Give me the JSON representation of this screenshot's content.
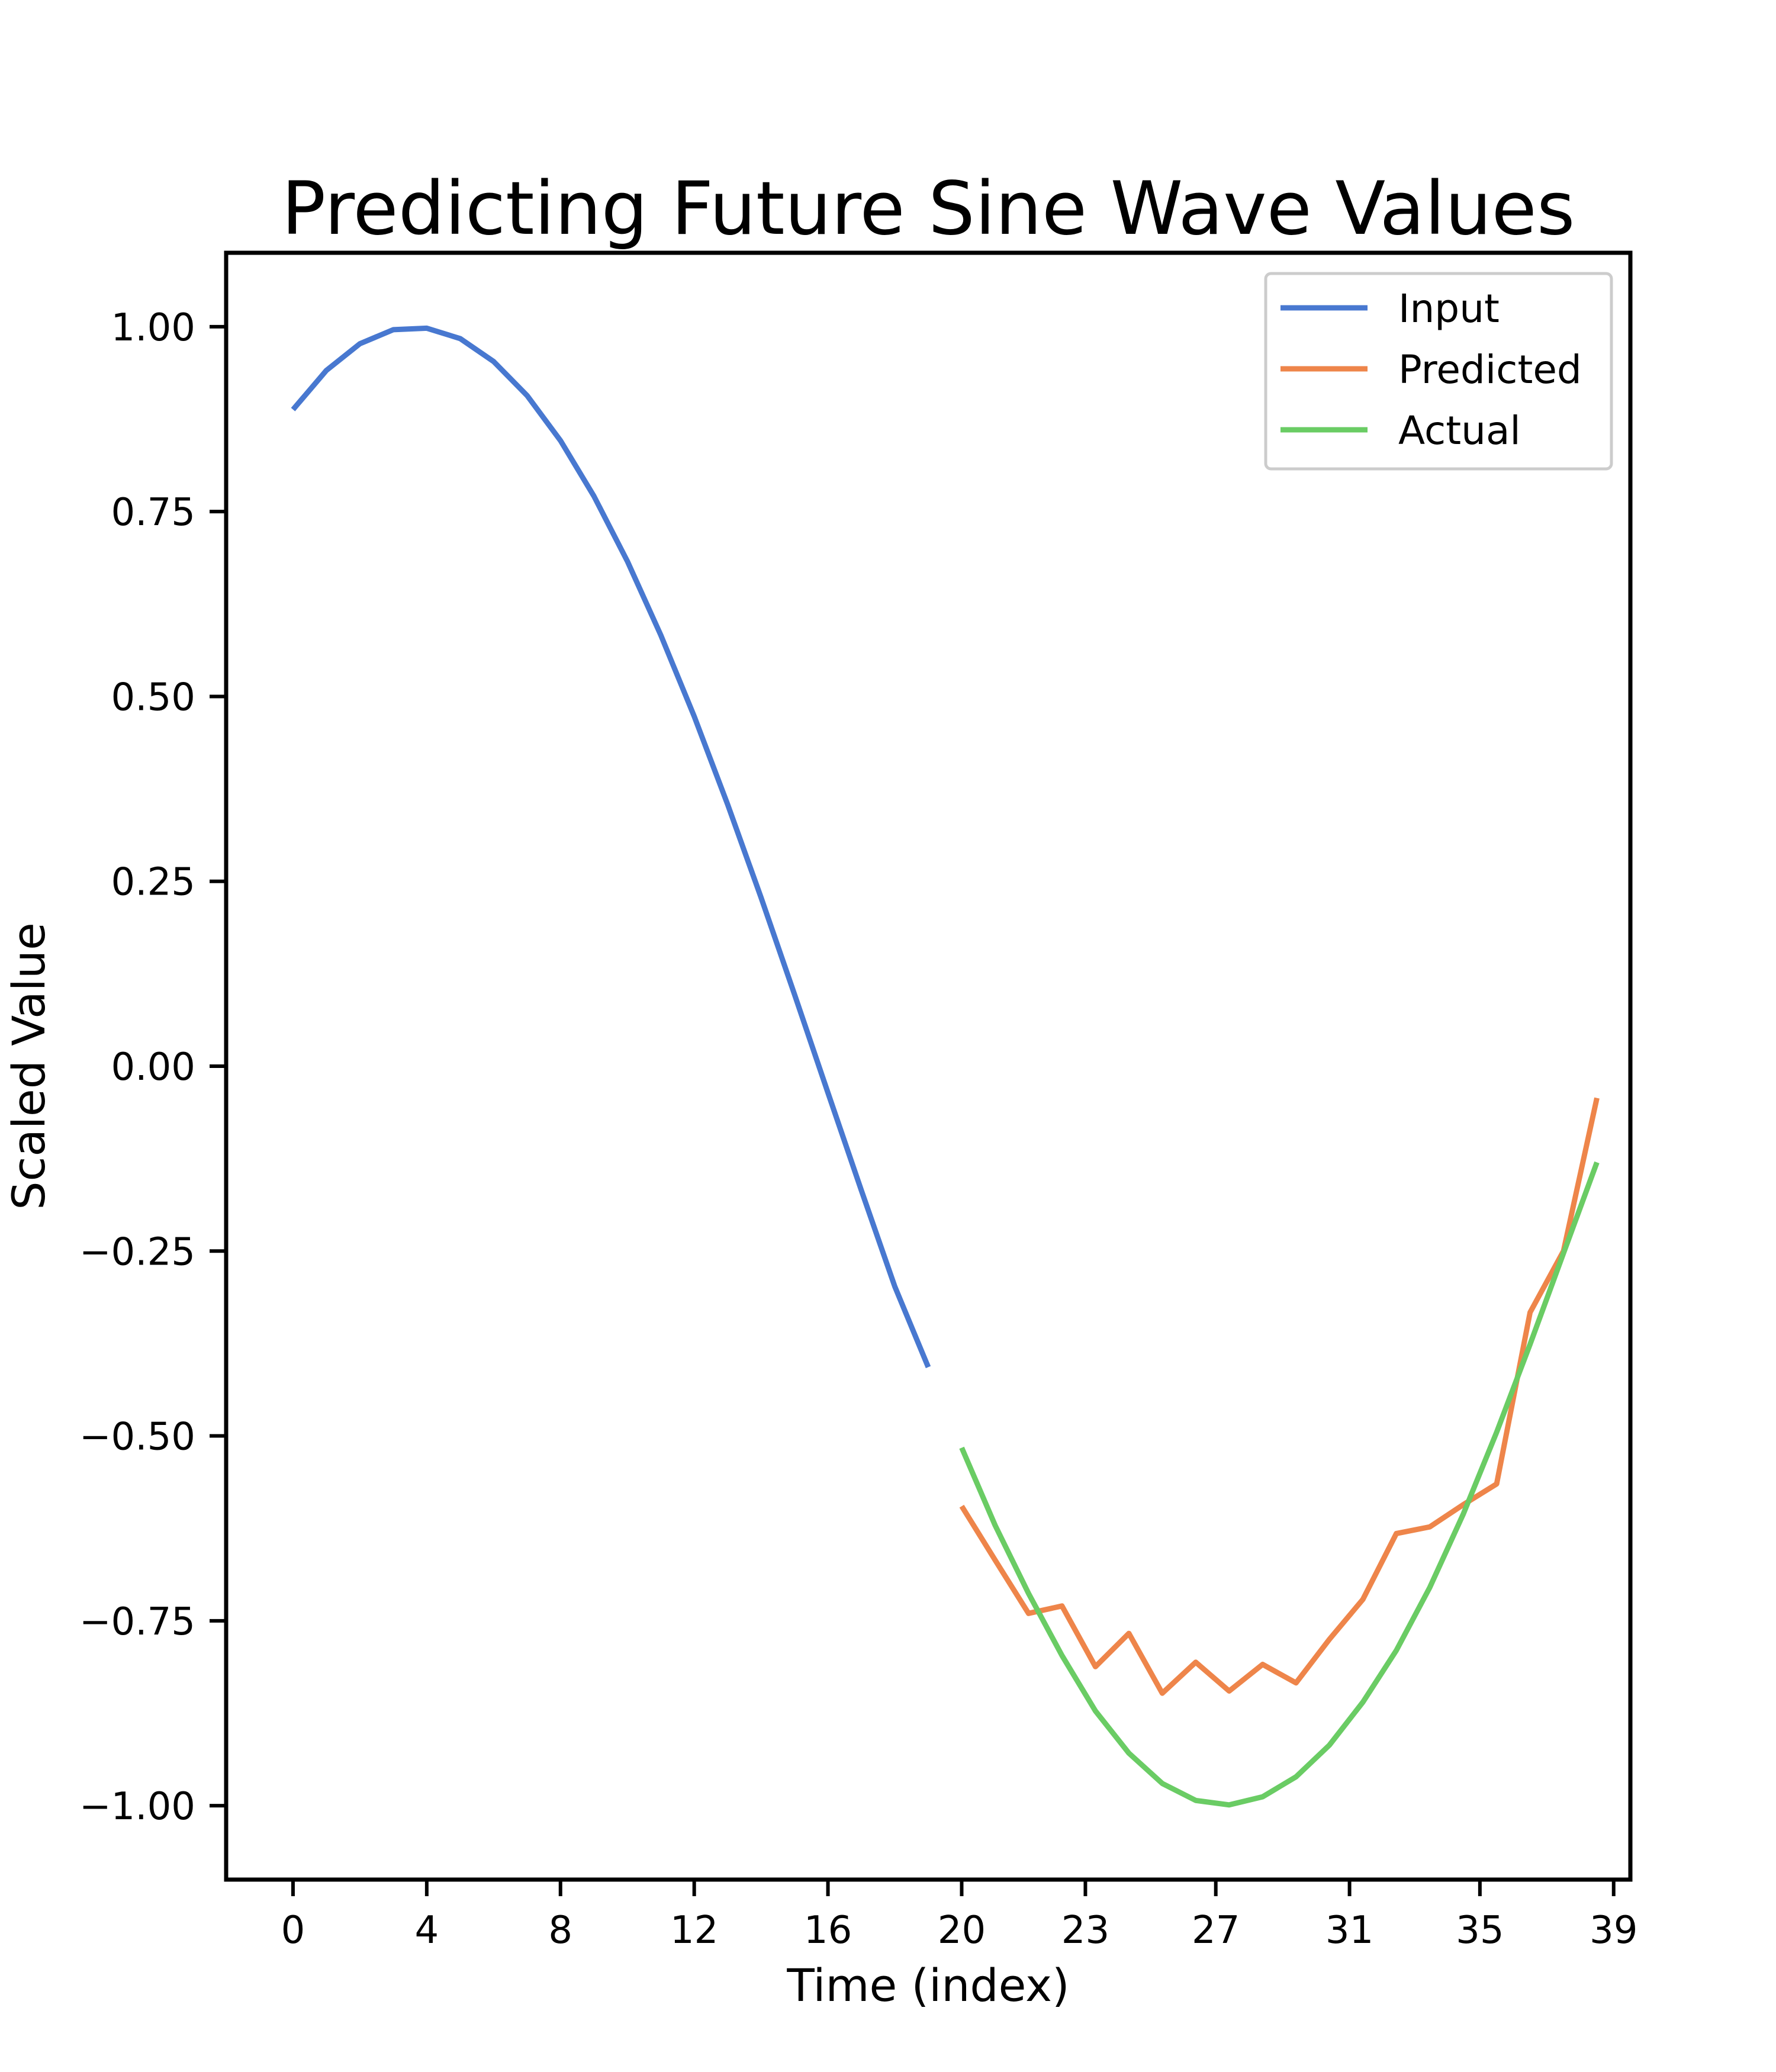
{
  "chart_data": {
    "type": "line",
    "title": "Predicting Future Sine Wave Values",
    "xlabel": "Time (index)",
    "ylabel": "Scaled Value",
    "xlim": [
      -2,
      40
    ],
    "ylim": [
      -1.1,
      1.1
    ],
    "xticks": [
      0,
      4,
      8,
      12,
      16,
      20,
      23.7,
      27.6,
      31.6,
      35.5,
      39.5
    ],
    "xtick_labels": [
      "0",
      "4",
      "8",
      "12",
      "16",
      "20",
      "23",
      "27",
      "31",
      "35",
      "39"
    ],
    "yticks": [
      1.0,
      0.75,
      0.5,
      0.25,
      0.0,
      -0.25,
      -0.5,
      -0.75,
      -1.0
    ],
    "ytick_labels": [
      "1.00",
      "0.75",
      "0.50",
      "0.25",
      "0.00",
      "−0.25",
      "−0.50",
      "−0.75",
      "−1.00"
    ],
    "grid": false,
    "legend_position": "top-right",
    "series": [
      {
        "name": "Input",
        "color": "#4878d0",
        "x": [
          0,
          1,
          2,
          3,
          4,
          5,
          6,
          7,
          8,
          9,
          10,
          11,
          12,
          13,
          14,
          15,
          16,
          17,
          18,
          19
        ],
        "values": [
          0.888,
          0.941,
          0.977,
          0.996,
          0.998,
          0.984,
          0.953,
          0.907,
          0.846,
          0.771,
          0.683,
          0.583,
          0.473,
          0.354,
          0.228,
          0.097,
          -0.036,
          -0.168,
          -0.298,
          -0.407
        ]
      },
      {
        "name": "Predicted",
        "color": "#ee854a",
        "x": [
          20,
          21,
          22,
          23,
          24,
          25,
          26,
          27,
          28,
          29,
          30,
          31,
          32,
          33,
          34,
          35,
          36,
          37,
          38,
          39
        ],
        "values": [
          -0.595,
          -0.668,
          -0.74,
          -0.73,
          -0.812,
          -0.767,
          -0.848,
          -0.806,
          -0.845,
          -0.809,
          -0.834,
          -0.775,
          -0.721,
          -0.632,
          -0.623,
          -0.593,
          -0.565,
          -0.333,
          -0.25,
          -0.043
        ]
      },
      {
        "name": "Actual",
        "color": "#6acc64",
        "x": [
          20,
          21,
          22,
          23,
          24,
          25,
          26,
          27,
          28,
          29,
          30,
          31,
          32,
          33,
          34,
          35,
          36,
          37,
          38,
          39
        ],
        "values": [
          -0.516,
          -0.621,
          -0.713,
          -0.797,
          -0.872,
          -0.929,
          -0.97,
          -0.993,
          -0.999,
          -0.988,
          -0.961,
          -0.918,
          -0.86,
          -0.79,
          -0.705,
          -0.606,
          -0.495,
          -0.376,
          -0.253,
          -0.13
        ]
      }
    ]
  }
}
